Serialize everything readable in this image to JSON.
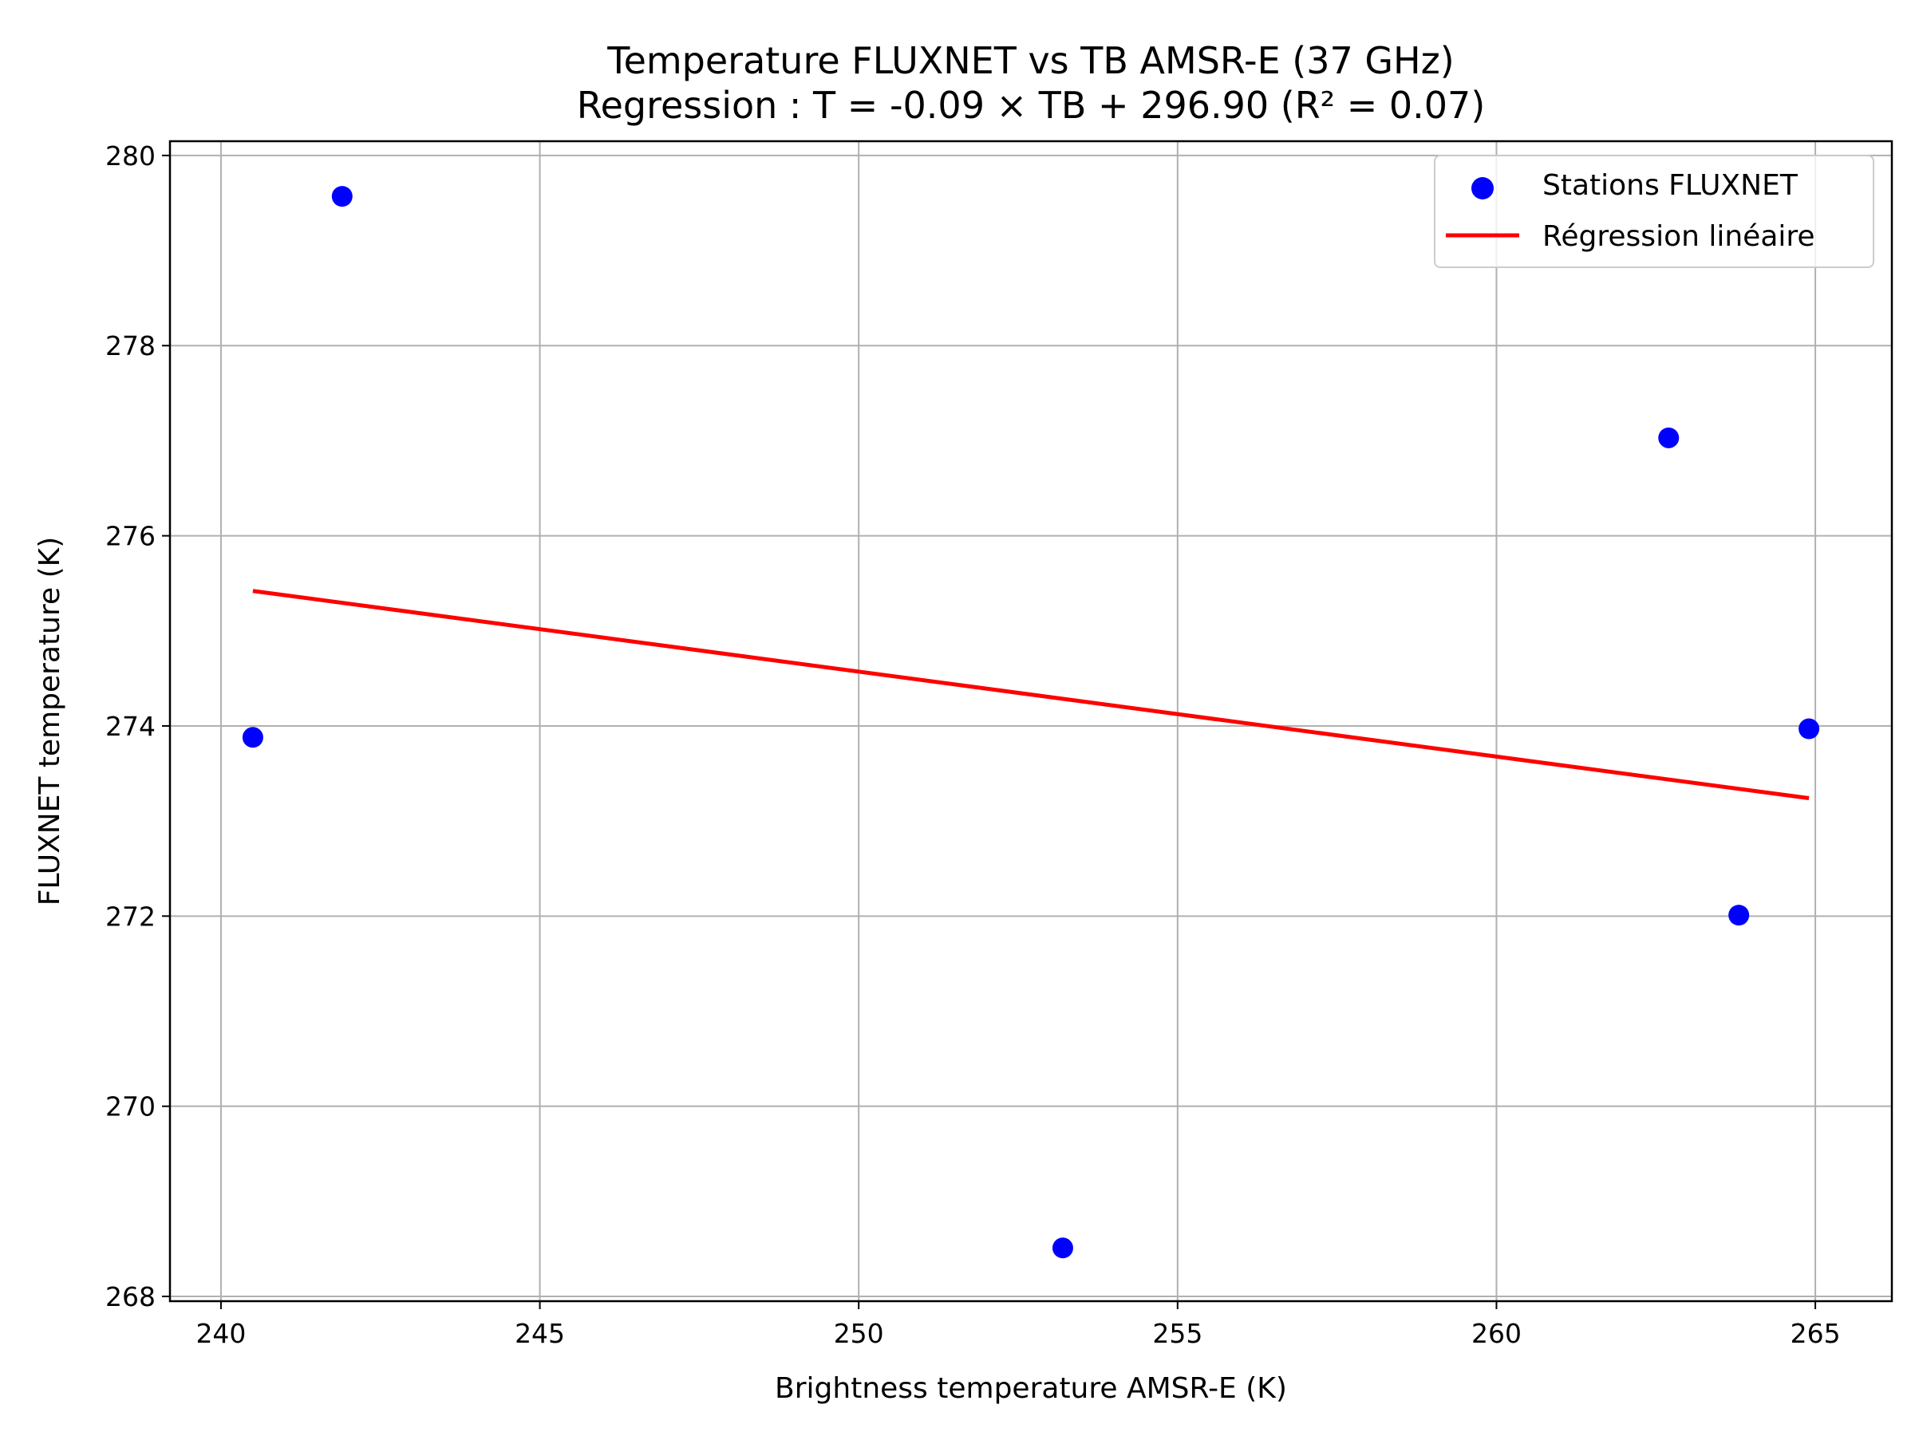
{
  "chart_data": {
    "type": "scatter",
    "title": "Temperature FLUXNET vs TB AMSR-E (37 GHz)",
    "subtitle": "Regression : T = -0.09 × TB + 296.90 (R² = 0.07)",
    "xlabel": "Brightness temperature AMSR-E (K)",
    "ylabel": "FLUXNET temperature (K)",
    "xlim": [
      239.2,
      266.2
    ],
    "ylim": [
      267.95,
      280.15
    ],
    "xticks": [
      240,
      245,
      250,
      255,
      260,
      265
    ],
    "yticks": [
      268,
      270,
      272,
      274,
      276,
      278,
      280
    ],
    "grid": true,
    "legend_position": "top-right",
    "series": [
      {
        "name": "Stations FLUXNET",
        "kind": "scatter",
        "color": "#0000ff",
        "points": [
          {
            "x": 240.5,
            "y": 273.88
          },
          {
            "x": 241.9,
            "y": 279.57
          },
          {
            "x": 253.2,
            "y": 268.51
          },
          {
            "x": 262.7,
            "y": 277.03
          },
          {
            "x": 263.8,
            "y": 272.01
          },
          {
            "x": 264.9,
            "y": 273.97
          }
        ]
      },
      {
        "name": "Régression linéaire",
        "kind": "line",
        "color": "#ff0000",
        "points": [
          {
            "x": 240.5,
            "y": 275.42
          },
          {
            "x": 264.9,
            "y": 273.24
          }
        ]
      }
    ]
  }
}
